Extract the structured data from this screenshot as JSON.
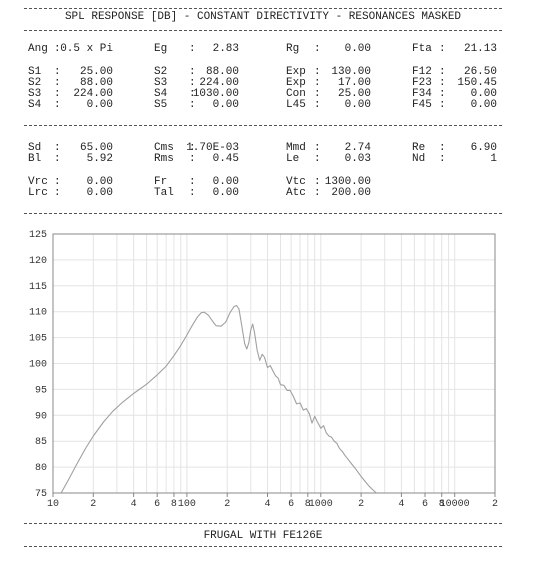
{
  "title": "SPL RESPONSE [DB] - CONSTANT DIRECTIVITY - RESONANCES MASKED",
  "footer": "FRUGAL WITH FE126E",
  "params": {
    "block1": [
      [
        [
          "Ang",
          "0.5 x Pi"
        ],
        [
          "Eg",
          "2.83"
        ],
        [
          "Rg",
          "0.00"
        ],
        [
          "Fta",
          "21.13"
        ]
      ],
      [
        [
          "S1",
          "25.00"
        ],
        [
          "S2",
          "88.00"
        ],
        [
          "Exp",
          "130.00"
        ],
        [
          "F12",
          "26.50"
        ]
      ],
      [
        [
          "S2",
          "88.00"
        ],
        [
          "S3",
          "224.00"
        ],
        [
          "Exp",
          "17.00"
        ],
        [
          "F23",
          "150.45"
        ]
      ],
      [
        [
          "S3",
          "224.00"
        ],
        [
          "S4",
          "1030.00"
        ],
        [
          "Con",
          "25.00"
        ],
        [
          "F34",
          "0.00"
        ]
      ],
      [
        [
          "S4",
          "0.00"
        ],
        [
          "S5",
          "0.00"
        ],
        [
          "L45",
          "0.00"
        ],
        [
          "F45",
          "0.00"
        ]
      ]
    ],
    "block2": [
      [
        [
          "Sd",
          "65.00"
        ],
        [
          "Cms",
          "1.70E-03"
        ],
        [
          "Mmd",
          "2.74"
        ],
        [
          "Re",
          "6.90"
        ]
      ],
      [
        [
          "Bl",
          "5.92"
        ],
        [
          "Rms",
          "0.45"
        ],
        [
          "Le",
          "0.03"
        ],
        [
          "Nd",
          "1"
        ]
      ],
      [
        [
          "Vrc",
          "0.00"
        ],
        [
          "Fr",
          "0.00"
        ],
        [
          "Vtc",
          "1300.00"
        ]
      ],
      [
        [
          "Lrc",
          "0.00"
        ],
        [
          "Tal",
          "0.00"
        ],
        [
          "Atc",
          "200.00"
        ]
      ]
    ]
  },
  "chart_data": {
    "type": "line",
    "xscale": "log",
    "xlim": [
      10,
      20000
    ],
    "ylim": [
      75,
      125
    ],
    "grid": true,
    "yticks": [
      "75",
      "80",
      "85",
      "90",
      "95",
      "100",
      "105",
      "110",
      "115",
      "120",
      "125"
    ],
    "xticklabels": [
      {
        "x": 10,
        "label": "10"
      },
      {
        "x": 20,
        "label": "2"
      },
      {
        "x": 40,
        "label": "4"
      },
      {
        "x": 60,
        "label": "6"
      },
      {
        "x": 80,
        "label": "8"
      },
      {
        "x": 100,
        "label": "100"
      },
      {
        "x": 200,
        "label": "2"
      },
      {
        "x": 400,
        "label": "4"
      },
      {
        "x": 600,
        "label": "6"
      },
      {
        "x": 800,
        "label": "8"
      },
      {
        "x": 1000,
        "label": "1000"
      },
      {
        "x": 2000,
        "label": "2"
      },
      {
        "x": 4000,
        "label": "4"
      },
      {
        "x": 6000,
        "label": "6"
      },
      {
        "x": 8000,
        "label": "8"
      },
      {
        "x": 10000,
        "label": "10000"
      },
      {
        "x": 20000,
        "label": "2"
      }
    ],
    "series": [
      {
        "color": "#a0a0a0",
        "points": [
          [
            11.5,
            75
          ],
          [
            13,
            77.5
          ],
          [
            15,
            80.5
          ],
          [
            17.5,
            83.6
          ],
          [
            20,
            86
          ],
          [
            24,
            88.8
          ],
          [
            28,
            90.8
          ],
          [
            33,
            92.5
          ],
          [
            40,
            94.2
          ],
          [
            50,
            96
          ],
          [
            60,
            97.8
          ],
          [
            70,
            99.5
          ],
          [
            80,
            101.5
          ],
          [
            90,
            103.5
          ],
          [
            100,
            105.5
          ],
          [
            110,
            107.4
          ],
          [
            120,
            109
          ],
          [
            128,
            109.8
          ],
          [
            135,
            109.9
          ],
          [
            145,
            109.3
          ],
          [
            155,
            108.2
          ],
          [
            165,
            107.3
          ],
          [
            180,
            107.2
          ],
          [
            195,
            108
          ],
          [
            210,
            109.8
          ],
          [
            225,
            111
          ],
          [
            235,
            111.2
          ],
          [
            245,
            110.5
          ],
          [
            258,
            107
          ],
          [
            270,
            103.8
          ],
          [
            280,
            102.8
          ],
          [
            290,
            104
          ],
          [
            300,
            106.5
          ],
          [
            310,
            107.6
          ],
          [
            320,
            106
          ],
          [
            335,
            102.5
          ],
          [
            350,
            100.6
          ],
          [
            365,
            101.8
          ],
          [
            380,
            101.2
          ],
          [
            400,
            99.2
          ],
          [
            420,
            99.6
          ],
          [
            440,
            98.5
          ],
          [
            460,
            97.6
          ],
          [
            480,
            97.2
          ],
          [
            500,
            95.9
          ],
          [
            530,
            95.8
          ],
          [
            560,
            94.8
          ],
          [
            590,
            94.8
          ],
          [
            620,
            93.8
          ],
          [
            660,
            92.2
          ],
          [
            700,
            92.4
          ],
          [
            740,
            91
          ],
          [
            780,
            91.3
          ],
          [
            820,
            90.3
          ],
          [
            860,
            88.5
          ],
          [
            900,
            89.8
          ],
          [
            940,
            88.8
          ],
          [
            1000,
            87.5
          ],
          [
            1050,
            88
          ],
          [
            1100,
            86.6
          ],
          [
            1150,
            86
          ],
          [
            1200,
            85.8
          ],
          [
            1260,
            85
          ],
          [
            1320,
            84.6
          ],
          [
            1380,
            83.6
          ],
          [
            1450,
            83
          ],
          [
            1520,
            82.2
          ],
          [
            1600,
            81.5
          ],
          [
            1700,
            80.6
          ],
          [
            1800,
            79.8
          ],
          [
            1900,
            79
          ],
          [
            2000,
            78.2
          ],
          [
            2150,
            77.2
          ],
          [
            2300,
            76.3
          ],
          [
            2450,
            75.6
          ],
          [
            2600,
            75
          ]
        ]
      }
    ]
  }
}
